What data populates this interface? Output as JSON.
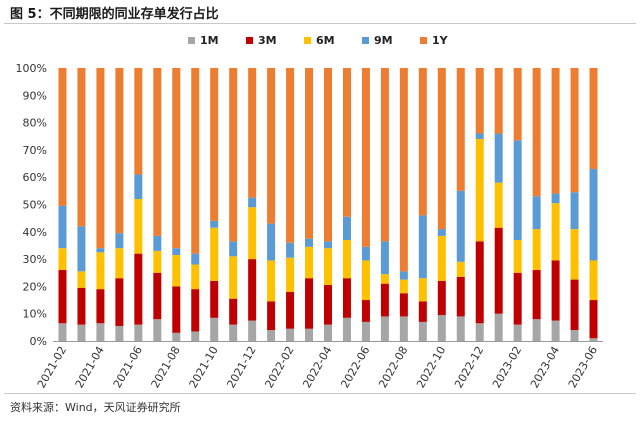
{
  "title": "图 5：不同期限的同业存单发行占比",
  "source": "资料来源：Wind，天风证券研究所",
  "chart_data": {
    "type": "bar",
    "stacked": true,
    "normalized": true,
    "ylim": [
      0,
      100
    ],
    "y_ticks": [
      "0%",
      "10%",
      "20%",
      "30%",
      "40%",
      "50%",
      "60%",
      "70%",
      "80%",
      "90%",
      "100%"
    ],
    "legend_position": "top",
    "x_tick_labels": [
      "2021-02",
      "2021-04",
      "2021-06",
      "2021-08",
      "2021-10",
      "2021-12",
      "2022-02",
      "2022-04",
      "2022-06",
      "2022-08",
      "2022-10",
      "2022-12",
      "2023-02",
      "2023-04",
      "2023-06"
    ],
    "categories": [
      "2021-02",
      "2021-03",
      "2021-04",
      "2021-05",
      "2021-06",
      "2021-07",
      "2021-08",
      "2021-09",
      "2021-10",
      "2021-11",
      "2021-12",
      "2022-01",
      "2022-02",
      "2022-03",
      "2022-04",
      "2022-05",
      "2022-06",
      "2022-07",
      "2022-08",
      "2022-09",
      "2022-10",
      "2022-11",
      "2022-12",
      "2023-01",
      "2023-02",
      "2023-03",
      "2023-04",
      "2023-05",
      "2023-06"
    ],
    "series": [
      {
        "name": "1M",
        "color": "#a6a6a6",
        "values": [
          6.5,
          6,
          6.5,
          5.5,
          6,
          8,
          3,
          3.5,
          8.5,
          6,
          7.5,
          4,
          4.5,
          4.5,
          6,
          8.5,
          7,
          9,
          9,
          7,
          9.5,
          9,
          6.5,
          10,
          6,
          8,
          7.5,
          4,
          1
        ]
      },
      {
        "name": "3M",
        "color": "#c00000",
        "values": [
          19.5,
          13.5,
          12.5,
          17.5,
          26,
          17,
          17,
          15.5,
          13.5,
          9.5,
          22.5,
          10.5,
          13.5,
          18.5,
          14.5,
          14.5,
          8,
          12,
          8.5,
          7.5,
          12.5,
          14.5,
          30,
          31.5,
          19,
          18,
          22,
          18.5,
          14
        ]
      },
      {
        "name": "6M",
        "color": "#ffc000",
        "values": [
          8,
          6,
          13.5,
          11,
          20,
          8,
          11.5,
          9,
          19.5,
          15.5,
          19,
          15,
          12.5,
          11.5,
          13.5,
          14,
          14.5,
          3.5,
          5,
          8.5,
          16.5,
          5.5,
          37.5,
          16.5,
          12,
          15,
          21,
          18.5,
          14.5
        ]
      },
      {
        "name": "9M",
        "color": "#5b9bd5",
        "values": [
          15.5,
          16.5,
          1.5,
          5.5,
          9,
          5.5,
          2.5,
          4,
          2.5,
          5.5,
          3.5,
          13.5,
          5.5,
          3,
          2.5,
          8.5,
          5,
          12,
          3,
          23,
          2.5,
          26,
          2,
          18,
          36.5,
          12,
          3.5,
          13.5,
          33.5
        ]
      },
      {
        "name": "1Y",
        "color": "#ed7d31",
        "values": [
          50.5,
          58,
          66,
          60.5,
          39,
          61.5,
          66,
          68,
          56,
          63.5,
          47.5,
          57,
          64,
          62.5,
          63.5,
          54.5,
          65.5,
          63.5,
          74.5,
          54,
          59,
          45,
          24,
          24,
          26.5,
          47,
          46,
          45.5,
          37
        ]
      }
    ]
  }
}
